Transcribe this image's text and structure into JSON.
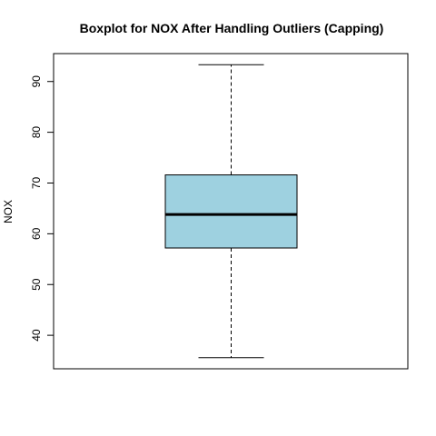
{
  "chart_data": {
    "type": "boxplot",
    "title": "Boxplot for NOX After Handling Outliers (Capping)",
    "xlabel": "",
    "ylabel": "NOX",
    "ylim": [
      33.4,
      95.5
    ],
    "yticks": [
      40,
      50,
      60,
      70,
      80,
      90
    ],
    "grid": false,
    "box": {
      "whisker_low": 35.6,
      "q1": 57.2,
      "median": 63.8,
      "q3": 71.6,
      "whisker_high": 93.3
    },
    "colors": {
      "box_fill": "#9ed1e0",
      "stroke": "#000000"
    }
  }
}
